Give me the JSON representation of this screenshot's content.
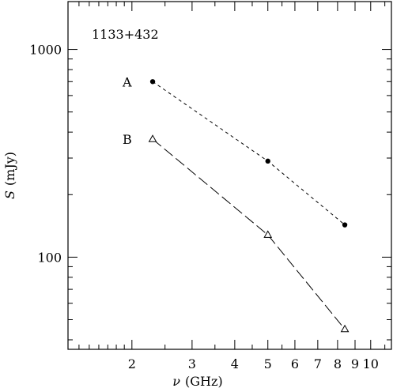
{
  "chart_data": {
    "type": "line",
    "title": "",
    "annotation": "1133+432",
    "xlabel": {
      "symbol": "ν",
      "unit": "(GHz)"
    },
    "ylabel": {
      "symbol": "S",
      "unit": "(mJy)"
    },
    "x_scale": "log",
    "y_scale": "log",
    "xlim": [
      1.3,
      11.5
    ],
    "ylim": [
      36,
      1700
    ],
    "x_ticks_labeled": [
      2,
      3,
      4,
      5,
      6,
      7,
      8,
      9,
      10
    ],
    "x_tick_labels": [
      "2",
      "3",
      "4",
      "5",
      "6",
      "7",
      "8",
      "9",
      "10"
    ],
    "y_ticks_labeled": [
      100,
      1000
    ],
    "y_tick_labels": [
      "100",
      "1000"
    ],
    "grid": false,
    "series": [
      {
        "name": "A",
        "marker": "filled-circle",
        "line_style": "short-dash",
        "x": [
          2.3,
          5.0,
          8.4
        ],
        "y": [
          700,
          290,
          143
        ]
      },
      {
        "name": "B",
        "marker": "open-triangle",
        "line_style": "long-dash",
        "x": [
          2.3,
          5.0,
          8.4
        ],
        "y": [
          370,
          128,
          45
        ]
      }
    ]
  }
}
